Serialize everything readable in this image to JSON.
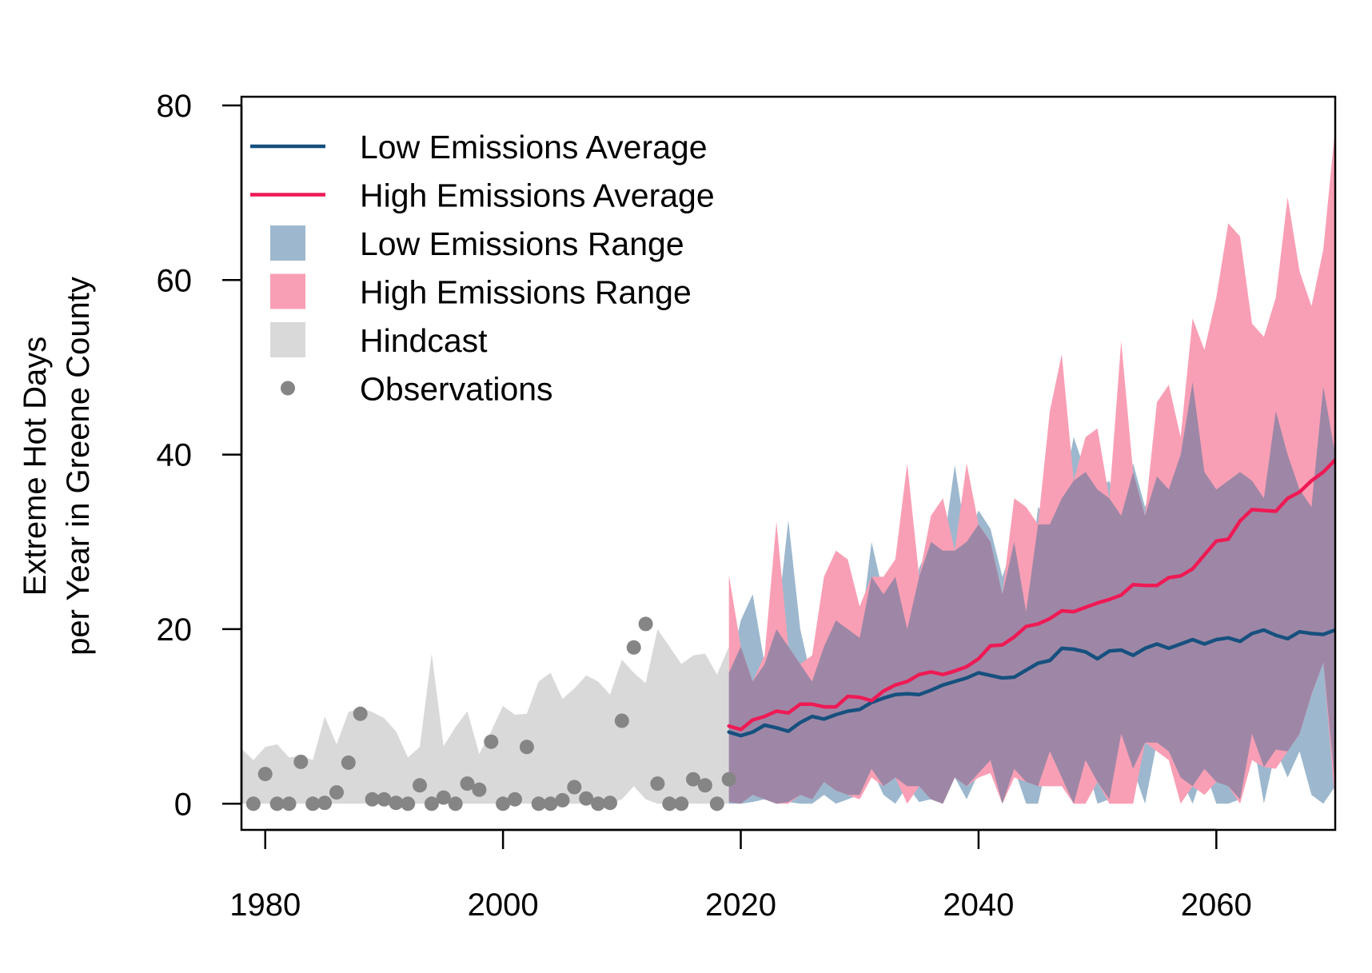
{
  "chart_data": {
    "type": "area",
    "title": "",
    "xlabel": "",
    "ylabel": [
      "Extreme Hot Days",
      "per Year in Greene County"
    ],
    "xlim": [
      1978,
      2070
    ],
    "ylim": [
      -3,
      81
    ],
    "xticks": [
      1980,
      2000,
      2020,
      2040,
      2060
    ],
    "yticks": [
      0,
      20,
      40,
      60,
      80
    ],
    "grid": false,
    "legend_position": "top-left",
    "legend": [
      {
        "label": "Low Emissions Average",
        "kind": "line",
        "color": "#16507e"
      },
      {
        "label": "High Emissions Average",
        "kind": "line",
        "color": "#ee1a55"
      },
      {
        "label": "Low Emissions Range",
        "kind": "area",
        "color": "#9db8ce"
      },
      {
        "label": "High Emissions Range",
        "kind": "area",
        "color": "#f99fb5"
      },
      {
        "label": "Hindcast",
        "kind": "area",
        "color": "#d9d9d9"
      },
      {
        "label": "Observations",
        "kind": "point",
        "color": "#858585"
      }
    ],
    "colors": {
      "low_avg": "#16507e",
      "high_avg": "#ee1a55",
      "low_range": "#9db8ce",
      "high_range": "#f99fb5",
      "overlap": "#9e87a6",
      "hindcast": "#d9d9d9",
      "observations": "#858585"
    },
    "hindcast": {
      "x": [
        1978,
        1979,
        1980,
        1981,
        1982,
        1983,
        1984,
        1985,
        1986,
        1987,
        1988,
        1989,
        1990,
        1991,
        1992,
        1993,
        1994,
        1995,
        1996,
        1997,
        1998,
        1999,
        2000,
        2001,
        2002,
        2003,
        2004,
        2005,
        2006,
        2007,
        2008,
        2009,
        2010,
        2011,
        2012,
        2013,
        2014,
        2015,
        2016,
        2017,
        2018,
        2019
      ],
      "upper": [
        6.3,
        5,
        6.5,
        6.8,
        5.3,
        5.5,
        5,
        10,
        6.8,
        10.5,
        11,
        10.5,
        9.8,
        8.3,
        5.3,
        6.5,
        17.2,
        6.6,
        8.8,
        10.6,
        5.7,
        8.3,
        11.2,
        10.2,
        10.3,
        14,
        15,
        12,
        13.2,
        14.7,
        14,
        12.5,
        16.5,
        15,
        13.8,
        20,
        18,
        16,
        17,
        17.2,
        14.8,
        18
      ],
      "lower": [
        0,
        0,
        0,
        0,
        0,
        0,
        0,
        0,
        0,
        0,
        0,
        0,
        0,
        0,
        0,
        0,
        0,
        0,
        0,
        0,
        0,
        0,
        0,
        0,
        0,
        0,
        0,
        0,
        0,
        0,
        0,
        0,
        0.5,
        2,
        0.5,
        0,
        0,
        0,
        0,
        0,
        0,
        0
      ]
    },
    "observations": {
      "x": [
        1979,
        1980,
        1981,
        1982,
        1983,
        1984,
        1985,
        1986,
        1987,
        1988,
        1989,
        1990,
        1991,
        1992,
        1993,
        1994,
        1995,
        1996,
        1997,
        1998,
        1999,
        2000,
        2001,
        2002,
        2003,
        2004,
        2005,
        2006,
        2007,
        2008,
        2009,
        2010,
        2011,
        2012,
        2013,
        2014,
        2015,
        2016,
        2017,
        2018,
        2019
      ],
      "y": [
        0,
        3.4,
        0,
        0,
        4.8,
        0,
        0.1,
        1.3,
        4.7,
        10.3,
        0.5,
        0.5,
        0.1,
        0,
        2.1,
        0,
        0.7,
        0,
        2.3,
        1.6,
        7.1,
        0,
        0.5,
        6.5,
        0,
        0,
        0.4,
        1.9,
        0.6,
        0,
        0.1,
        9.5,
        17.9,
        20.6,
        2.3,
        0,
        0,
        2.8,
        2.1,
        0,
        2.8
      ]
    },
    "projection_x": [
      2019,
      2020,
      2021,
      2022,
      2023,
      2024,
      2025,
      2026,
      2027,
      2028,
      2029,
      2030,
      2031,
      2032,
      2033,
      2034,
      2035,
      2036,
      2037,
      2038,
      2039,
      2040,
      2041,
      2042,
      2043,
      2044,
      2045,
      2046,
      2047,
      2048,
      2049,
      2050,
      2051,
      2052,
      2053,
      2054,
      2055,
      2056,
      2057,
      2058,
      2059,
      2060,
      2061,
      2062,
      2063,
      2064,
      2065,
      2066,
      2067,
      2068,
      2069,
      2070
    ],
    "series": [
      {
        "name": "Low Emissions Average",
        "values": [
          8.2,
          7.8,
          8.2,
          9,
          8.7,
          8.3,
          9.3,
          10,
          9.7,
          10.2,
          10.6,
          10.8,
          11.6,
          12.1,
          12.5,
          12.6,
          12.5,
          13,
          13.6,
          14,
          14.4,
          15,
          14.7,
          14.4,
          14.5,
          15.3,
          16.1,
          16.4,
          17.8,
          17.7,
          17.4,
          16.6,
          17.5,
          17.6,
          17,
          17.8,
          18.3,
          17.8,
          18.3,
          18.8,
          18.3,
          18.8,
          19,
          18.6,
          19.5,
          19.9,
          19.3,
          18.9,
          19.7,
          19.5,
          19.4,
          19.9
        ]
      },
      {
        "name": "High Emissions Average",
        "values": [
          8.9,
          8.5,
          9.6,
          10,
          10.6,
          10.4,
          11.4,
          11.4,
          11.1,
          11.1,
          12.3,
          12.2,
          11.8,
          12.9,
          13.6,
          14,
          14.8,
          15.1,
          14.8,
          15.2,
          15.7,
          16.6,
          18.1,
          18.2,
          19.1,
          20.3,
          20.6,
          21.2,
          22.1,
          22,
          22.5,
          23,
          23.4,
          23.9,
          25.1,
          25,
          25,
          25.9,
          26.1,
          26.9,
          28.5,
          30.1,
          30.3,
          32.4,
          33.7,
          33.6,
          33.5,
          35,
          35.7,
          37,
          38,
          39.4
        ]
      }
    ],
    "low_range": {
      "upper": [
        15,
        21,
        24,
        16,
        20,
        32.5,
        20,
        14,
        18,
        21,
        20,
        19,
        30,
        24,
        26,
        20,
        27,
        30,
        29,
        38.8,
        30,
        33.6,
        31.5,
        26,
        30,
        22,
        34,
        32,
        35,
        42,
        38,
        36,
        37,
        33,
        39,
        34,
        37.5,
        36,
        40,
        48.3,
        38,
        36,
        37,
        38,
        37,
        35,
        45,
        40,
        36,
        34,
        47.8,
        40
      ],
      "lower": [
        0,
        0,
        0.2,
        0.5,
        0,
        0.2,
        0,
        0,
        1,
        0,
        0.5,
        1,
        4,
        1,
        0,
        2,
        0.2,
        0.5,
        0,
        3,
        0.5,
        3.5,
        5,
        0,
        4,
        0,
        0,
        6,
        3,
        0,
        5,
        0,
        0.5,
        8,
        4,
        0,
        7,
        6,
        3,
        0,
        4,
        0,
        0,
        0.5,
        8,
        0,
        6.2,
        3,
        6,
        1,
        0,
        2
      ]
    },
    "high_range": {
      "upper": [
        26.2,
        18,
        14,
        17,
        32.3,
        18,
        16,
        17,
        26,
        29,
        28,
        22.6,
        26,
        26,
        28,
        39,
        26,
        33,
        35,
        29,
        39,
        32,
        30,
        24,
        35,
        34,
        32,
        45,
        51.5,
        37,
        42,
        43,
        35,
        53,
        38,
        33,
        46,
        48,
        42,
        55.6,
        52,
        58,
        66.5,
        65,
        55,
        53.5,
        58,
        69.5,
        61,
        57,
        63.5,
        77.5
      ],
      "lower": [
        0.2,
        0,
        1,
        0.5,
        0,
        0,
        1,
        0.5,
        2.5,
        1.5,
        1,
        0.5,
        3,
        2,
        3,
        0,
        2,
        0.5,
        0,
        3,
        2,
        3,
        3.5,
        0,
        3,
        2.5,
        2,
        2,
        2,
        0,
        0,
        2.5,
        0,
        0,
        0,
        7,
        6,
        5,
        0,
        2,
        1,
        2.5,
        2,
        0,
        5,
        4.2,
        4,
        6,
        8,
        12.5,
        16.2,
        0
      ]
    }
  }
}
